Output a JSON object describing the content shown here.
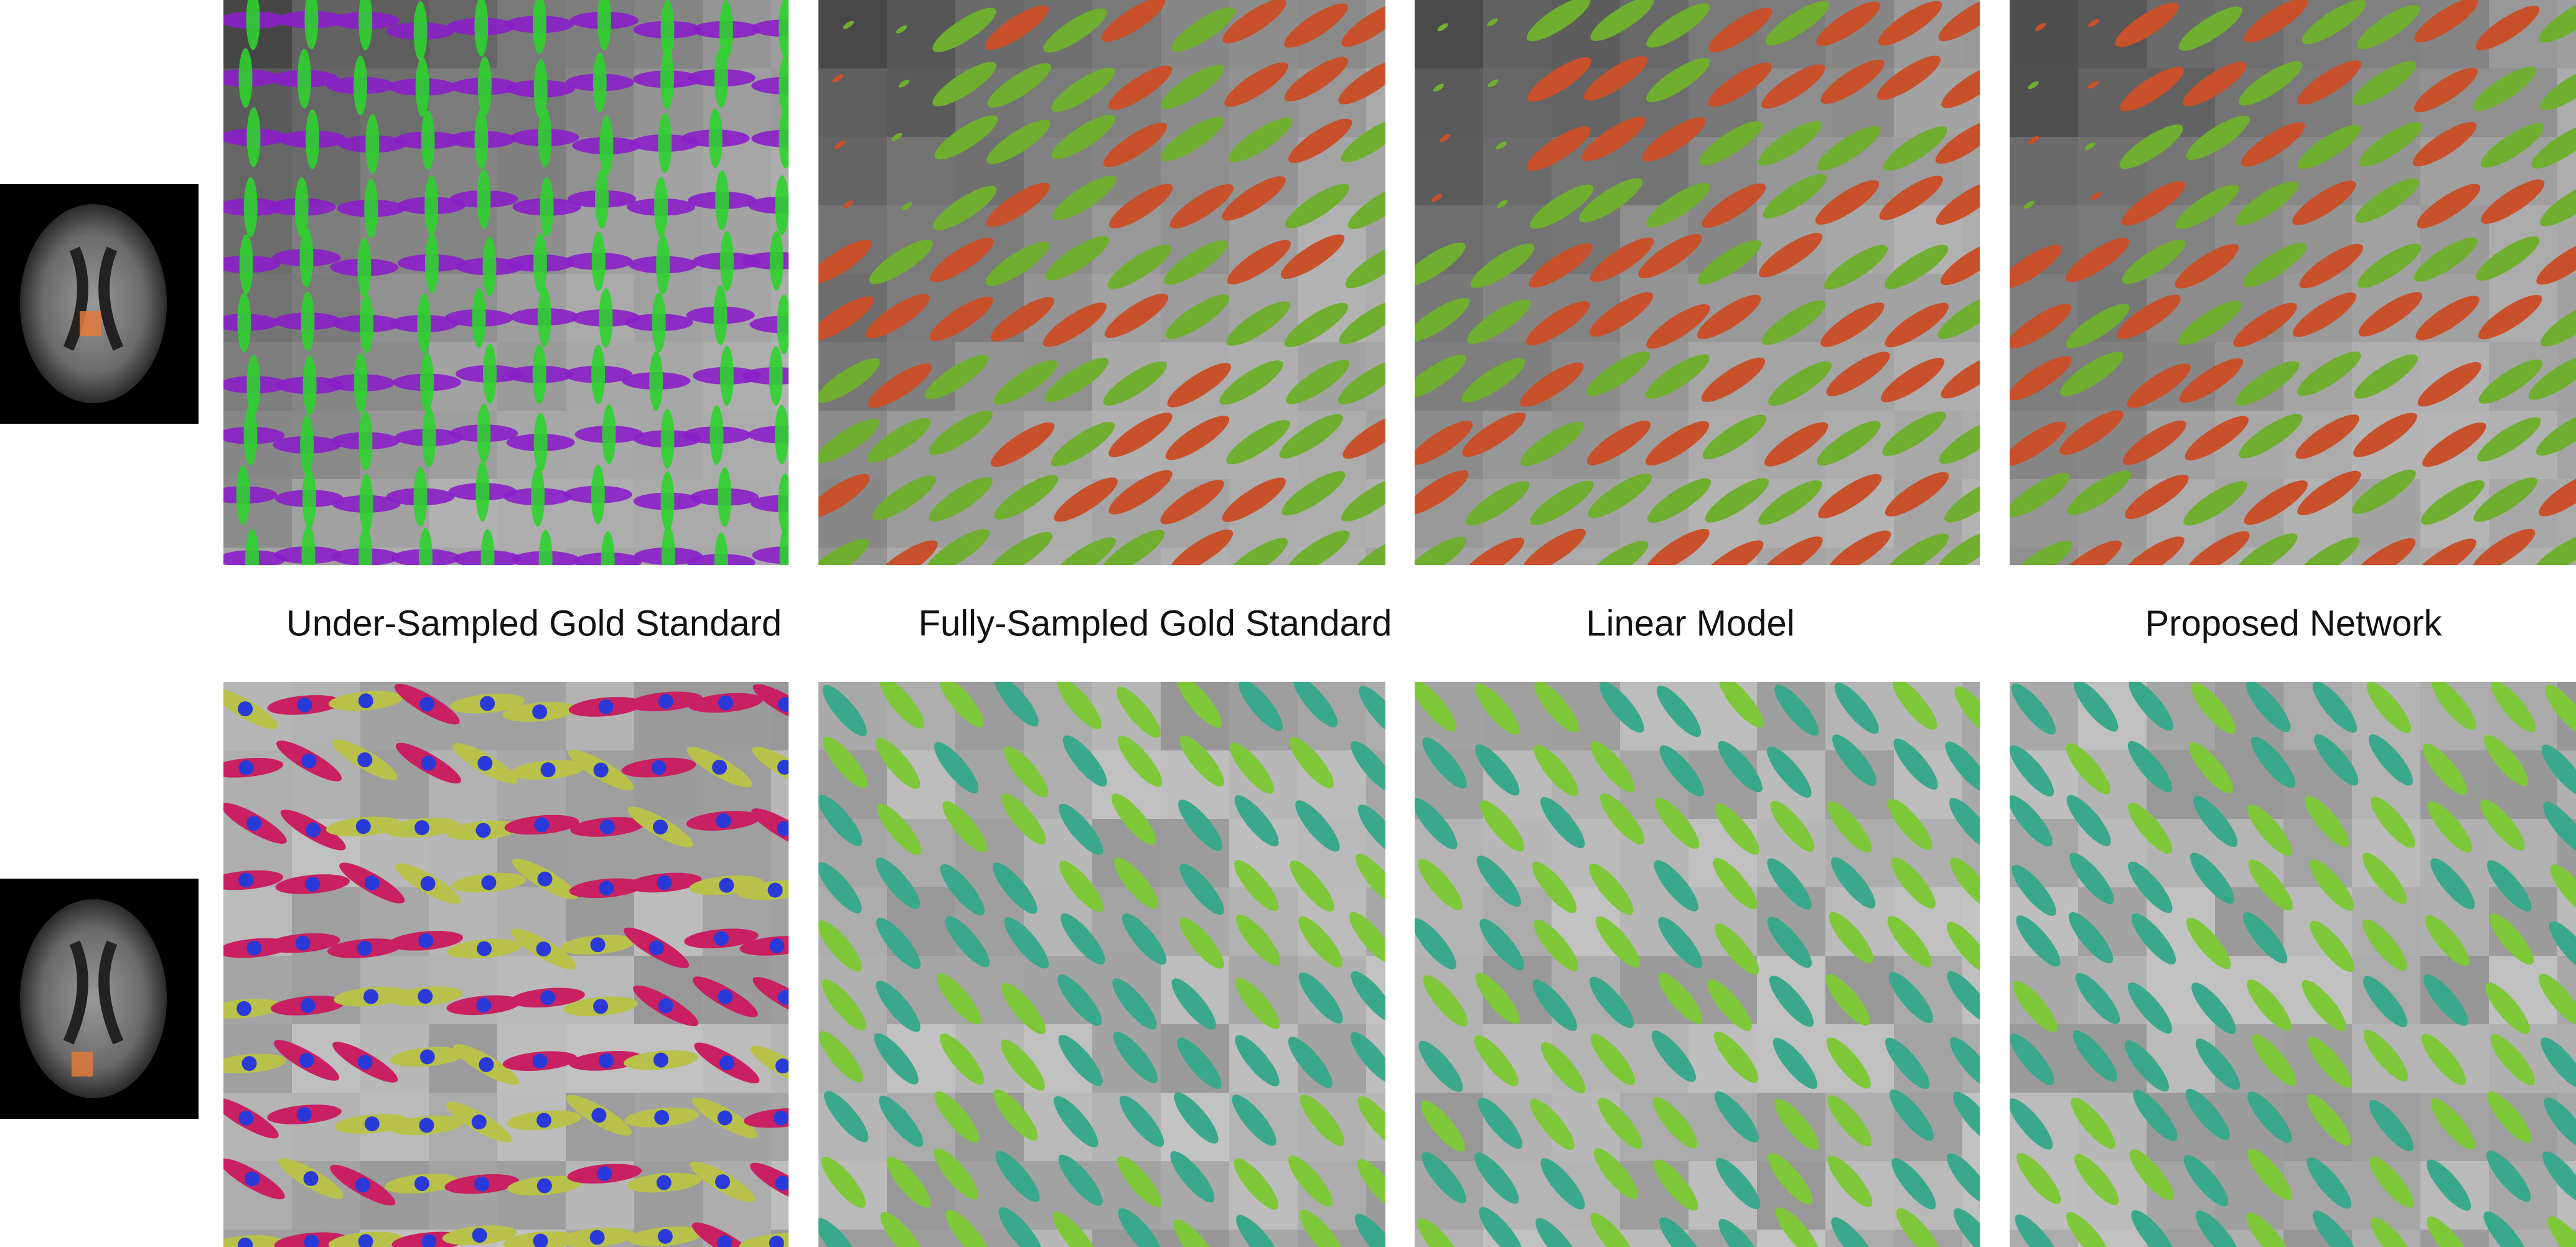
{
  "labels": [
    "Under-Sampled Gold Standard",
    "Fully-Sampled Gold Standard",
    "Linear Model",
    "Proposed Network"
  ]
}
